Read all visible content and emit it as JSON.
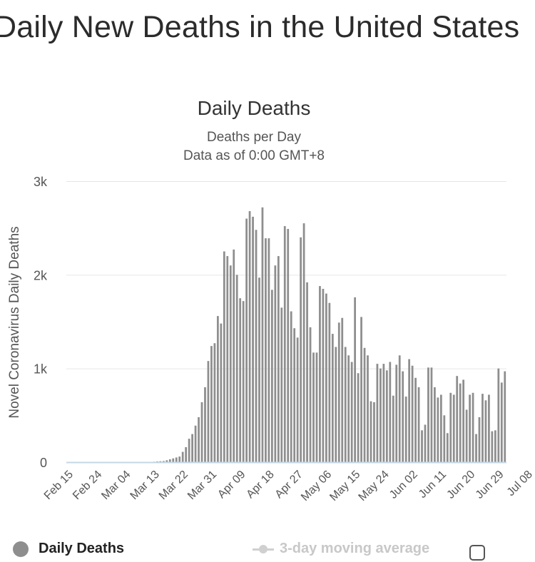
{
  "page": {
    "title": "Daily New Deaths in the United States"
  },
  "legend": {
    "daily_label": "Daily Deaths",
    "moving_average_label": "3-day moving average",
    "daily_color": "#8e8e8e",
    "moving_average_color": "#d0d0d0"
  },
  "chart_data": {
    "type": "bar",
    "title": "Daily Deaths",
    "subtitle": "Deaths per Day",
    "subtitle2": "Data as of 0:00 GMT+8",
    "xlabel": "",
    "ylabel": "Novel Coronavirus Daily Deaths",
    "ylim": [
      0,
      3000
    ],
    "yticks": [
      0,
      1000,
      2000,
      3000
    ],
    "ytick_labels": [
      "0",
      "1k",
      "2k",
      "3k"
    ],
    "xtick_labels": [
      "Feb 15",
      "Feb 24",
      "Mar 04",
      "Mar 13",
      "Mar 22",
      "Mar 31",
      "Apr 09",
      "Apr 18",
      "Apr 27",
      "May 06",
      "May 15",
      "May 24",
      "Jun 02",
      "Jun 11",
      "Jun 20",
      "Jun 29",
      "Jul 08"
    ],
    "grid": true,
    "bar_color": "#8e8e8e",
    "start_date": "Feb 15",
    "series": [
      {
        "name": "Daily Deaths",
        "values": [
          0,
          0,
          0,
          0,
          0,
          0,
          0,
          0,
          0,
          0,
          0,
          0,
          0,
          0,
          0,
          0,
          0,
          0,
          0,
          0,
          0,
          0,
          0,
          0,
          0,
          0,
          0,
          5,
          8,
          10,
          12,
          20,
          30,
          40,
          50,
          60,
          110,
          160,
          250,
          300,
          390,
          480,
          640,
          800,
          1080,
          1240,
          1270,
          1560,
          1480,
          2250,
          2200,
          2100,
          2270,
          2000,
          1750,
          1720,
          2600,
          2680,
          2620,
          2480,
          1970,
          2720,
          2390,
          2390,
          1840,
          2100,
          2200,
          1650,
          2520,
          2490,
          1610,
          1430,
          1330,
          2400,
          2550,
          1920,
          1440,
          1170,
          1170,
          1880,
          1850,
          1800,
          1700,
          1370,
          1230,
          1490,
          1540,
          1230,
          1140,
          1070,
          1760,
          950,
          1550,
          1220,
          1140,
          650,
          640,
          1050,
          1000,
          1050,
          980,
          1070,
          710,
          1040,
          1140,
          970,
          700,
          1100,
          1030,
          900,
          800,
          340,
          400,
          1010,
          1010,
          800,
          690,
          720,
          500,
          310,
          740,
          720,
          920,
          840,
          880,
          560,
          720,
          740,
          300,
          480,
          730,
          660,
          720,
          330,
          340,
          1000,
          850,
          970
        ]
      }
    ]
  }
}
